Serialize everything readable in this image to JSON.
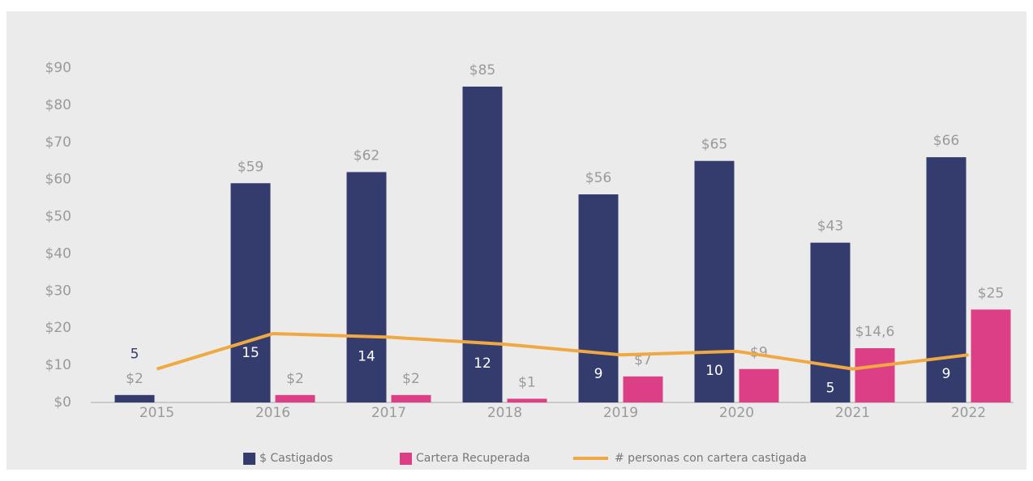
{
  "chart_data": {
    "type": "bar",
    "categories": [
      "2015",
      "2016",
      "2017",
      "2018",
      "2019",
      "2020",
      "2021",
      "2022"
    ],
    "series": [
      {
        "name": "$ Castigados",
        "color": "#343c6e",
        "values": [
          2,
          59,
          62,
          85,
          56,
          65,
          43,
          66
        ],
        "value_labels": [
          "$2",
          "$59",
          "$62",
          "$85",
          "$56",
          "$65",
          "$43",
          "$66"
        ]
      },
      {
        "name": "Cartera Recuperada",
        "color": "#dd3f87",
        "values": [
          null,
          2,
          2,
          1,
          7,
          9,
          14.6,
          25
        ],
        "value_labels": [
          null,
          "$2",
          "$2",
          "$1",
          "$7",
          "$9",
          "$14,6",
          "$25"
        ]
      },
      {
        "name": "# personas con cartera castigada",
        "color": "#f0a843",
        "type": "line",
        "axis": "y2",
        "values": [
          5,
          15,
          14,
          12,
          9,
          10,
          5,
          9
        ]
      }
    ],
    "ylim": [
      0,
      90
    ],
    "yticks": [
      {
        "value": 0,
        "label": "$0"
      },
      {
        "value": 10,
        "label": "$10"
      },
      {
        "value": 20,
        "label": "$20"
      },
      {
        "value": 30,
        "label": "$30"
      },
      {
        "value": 40,
        "label": "$40"
      },
      {
        "value": 50,
        "label": "$50"
      },
      {
        "value": 60,
        "label": "$60"
      },
      {
        "value": 70,
        "label": "$70"
      },
      {
        "value": 80,
        "label": "$80"
      },
      {
        "value": 90,
        "label": "$90"
      }
    ],
    "y2lim": [
      -4.5,
      90.3
    ],
    "grid": false,
    "legend": "bottom"
  }
}
